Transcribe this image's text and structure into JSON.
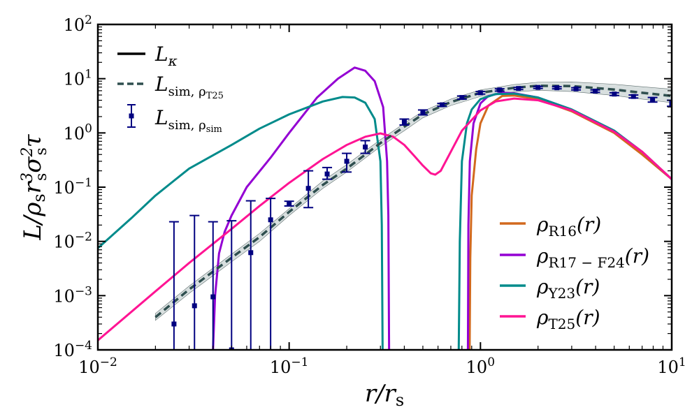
{
  "chart_data": {
    "type": "line",
    "xscale": "log",
    "yscale": "log",
    "xlim": [
      0.01,
      10
    ],
    "ylim": [
      0.0001,
      100
    ],
    "xlabel": "r/r_s",
    "ylabel": "L/ρ_s r_s^3 σ_s^2 τ",
    "x_ticks": [
      {
        "base": "10",
        "exp": "−2"
      },
      {
        "base": "10",
        "exp": "−1"
      },
      {
        "base": "10",
        "exp": "0"
      },
      {
        "base": "10",
        "exp": "1"
      }
    ],
    "y_ticks": [
      {
        "base": "10",
        "exp": "−4"
      },
      {
        "base": "10",
        "exp": "−3"
      },
      {
        "base": "10",
        "exp": "−2"
      },
      {
        "base": "10",
        "exp": "−1"
      },
      {
        "base": "10",
        "exp": "0"
      },
      {
        "base": "10",
        "exp": "1"
      },
      {
        "base": "10",
        "exp": "2"
      }
    ],
    "legend_top_left": [
      {
        "label": "L_κ",
        "style": "solid",
        "color": "#000000"
      },
      {
        "label": "L_sim, ρ_T25",
        "style": "dashed",
        "color": "#2f4f4f"
      },
      {
        "label": "L_sim, ρ_sim",
        "style": "errorbar",
        "color": "#000080"
      }
    ],
    "legend_bottom_right": [
      {
        "label": "ρ_R16(r)",
        "color": "#d2691e"
      },
      {
        "label": "ρ_R17−F24(r)",
        "color": "#9400d3"
      },
      {
        "label": "ρ_Y23(r)",
        "color": "#008b8b"
      },
      {
        "label": "ρ_T25(r)",
        "color": "#ff1493"
      }
    ],
    "series": [
      {
        "name": "ρ_R16(r)",
        "color": "#d2691e",
        "points": [
          [
            0.878,
            0.0001
          ],
          [
            0.885,
            0.005
          ],
          [
            0.9,
            0.07
          ],
          [
            0.95,
            0.5
          ],
          [
            1.0,
            1.5
          ],
          [
            1.1,
            3.2
          ],
          [
            1.3,
            4.8
          ],
          [
            1.5,
            4.9
          ],
          [
            2.0,
            4.2
          ],
          [
            3.0,
            2.5
          ],
          [
            5.0,
            1.0
          ],
          [
            7.0,
            0.4
          ],
          [
            10.0,
            0.14
          ]
        ]
      },
      {
        "name": "ρ_R17−F24(r)",
        "color": "#9400d3",
        "points": [
          [
            0.04,
            0.0001
          ],
          [
            0.041,
            0.001
          ],
          [
            0.043,
            0.006
          ],
          [
            0.046,
            0.015
          ],
          [
            0.05,
            0.03
          ],
          [
            0.06,
            0.1
          ],
          [
            0.08,
            0.35
          ],
          [
            0.1,
            1.0
          ],
          [
            0.14,
            4.5
          ],
          [
            0.18,
            10.0
          ],
          [
            0.22,
            16.0
          ],
          [
            0.25,
            14.0
          ],
          [
            0.28,
            9.0
          ],
          [
            0.31,
            3.0
          ],
          [
            0.325,
            0.3
          ],
          [
            0.33,
            0.03
          ],
          [
            0.333,
            0.0001
          ]
        ],
        "points2": [
          [
            0.86,
            0.0001
          ],
          [
            0.865,
            0.02
          ],
          [
            0.88,
            0.3
          ],
          [
            0.92,
            1.5
          ],
          [
            1.0,
            3.5
          ],
          [
            1.1,
            4.8
          ],
          [
            1.3,
            5.5
          ],
          [
            1.5,
            5.4
          ],
          [
            2.0,
            4.5
          ],
          [
            3.0,
            2.7
          ],
          [
            5.0,
            1.1
          ],
          [
            7.0,
            0.45
          ],
          [
            10.0,
            0.14
          ]
        ]
      },
      {
        "name": "ρ_Y23(r)",
        "color": "#008b8b",
        "points": [
          [
            0.01,
            0.0075
          ],
          [
            0.015,
            0.027
          ],
          [
            0.02,
            0.07
          ],
          [
            0.03,
            0.22
          ],
          [
            0.05,
            0.6
          ],
          [
            0.07,
            1.2
          ],
          [
            0.1,
            2.2
          ],
          [
            0.15,
            3.8
          ],
          [
            0.19,
            4.6
          ],
          [
            0.22,
            4.5
          ],
          [
            0.25,
            3.6
          ],
          [
            0.28,
            1.8
          ],
          [
            0.3,
            0.3
          ],
          [
            0.305,
            0.02
          ],
          [
            0.308,
            0.0001
          ]
        ],
        "points2": [
          [
            0.77,
            0.0001
          ],
          [
            0.78,
            0.01
          ],
          [
            0.8,
            0.3
          ],
          [
            0.85,
            1.5
          ],
          [
            0.9,
            2.7
          ],
          [
            1.0,
            4.2
          ],
          [
            1.2,
            5.2
          ],
          [
            1.5,
            5.3
          ],
          [
            2.0,
            4.5
          ],
          [
            3.0,
            2.7
          ],
          [
            5.0,
            1.1
          ],
          [
            7.0,
            0.45
          ],
          [
            10.0,
            0.14
          ]
        ]
      },
      {
        "name": "ρ_T25(r)",
        "color": "#ff1493",
        "points": [
          [
            0.01,
            0.00015
          ],
          [
            0.02,
            0.0012
          ],
          [
            0.03,
            0.004
          ],
          [
            0.05,
            0.017
          ],
          [
            0.07,
            0.045
          ],
          [
            0.1,
            0.12
          ],
          [
            0.15,
            0.33
          ],
          [
            0.2,
            0.6
          ],
          [
            0.25,
            0.85
          ],
          [
            0.3,
            0.98
          ],
          [
            0.35,
            0.85
          ],
          [
            0.4,
            0.6
          ],
          [
            0.45,
            0.38
          ],
          [
            0.5,
            0.25
          ],
          [
            0.55,
            0.18
          ],
          [
            0.58,
            0.17
          ],
          [
            0.62,
            0.2
          ],
          [
            0.7,
            0.45
          ],
          [
            0.8,
            1.1
          ],
          [
            1.0,
            2.6
          ],
          [
            1.2,
            3.8
          ],
          [
            1.5,
            4.3
          ],
          [
            2.0,
            4.0
          ],
          [
            3.0,
            2.6
          ],
          [
            5.0,
            1.05
          ],
          [
            7.0,
            0.45
          ],
          [
            10.0,
            0.14
          ]
        ]
      },
      {
        "name": "L_sim, ρ_T25",
        "color": "#2f4f4f",
        "dashed": true,
        "points": [
          [
            0.02,
            0.0004
          ],
          [
            0.03,
            0.0013
          ],
          [
            0.05,
            0.005
          ],
          [
            0.07,
            0.012
          ],
          [
            0.1,
            0.035
          ],
          [
            0.15,
            0.11
          ],
          [
            0.2,
            0.22
          ],
          [
            0.3,
            0.65
          ],
          [
            0.4,
            1.3
          ],
          [
            0.5,
            2.2
          ],
          [
            0.7,
            3.7
          ],
          [
            1.0,
            5.5
          ],
          [
            1.5,
            6.8
          ],
          [
            2.0,
            7.4
          ],
          [
            3.0,
            7.3
          ],
          [
            5.0,
            6.3
          ],
          [
            7.0,
            5.5
          ],
          [
            10.0,
            4.8
          ]
        ]
      }
    ],
    "band": {
      "name": "L_sim band",
      "color": "#2f4f4f",
      "lower": [
        [
          0.02,
          0.00035
        ],
        [
          0.03,
          0.0011
        ],
        [
          0.05,
          0.0042
        ],
        [
          0.07,
          0.01
        ],
        [
          0.1,
          0.03
        ],
        [
          0.15,
          0.095
        ],
        [
          0.2,
          0.19
        ],
        [
          0.3,
          0.56
        ],
        [
          0.4,
          1.1
        ],
        [
          0.5,
          1.9
        ],
        [
          0.7,
          3.2
        ],
        [
          1.0,
          4.7
        ],
        [
          1.5,
          5.7
        ],
        [
          2.0,
          6.1
        ],
        [
          3.0,
          5.8
        ],
        [
          5.0,
          4.9
        ],
        [
          7.0,
          4.2
        ],
        [
          10.0,
          3.6
        ]
      ],
      "upper": [
        [
          0.02,
          0.00047
        ],
        [
          0.03,
          0.0015
        ],
        [
          0.05,
          0.0058
        ],
        [
          0.07,
          0.014
        ],
        [
          0.1,
          0.04
        ],
        [
          0.15,
          0.13
        ],
        [
          0.2,
          0.26
        ],
        [
          0.3,
          0.75
        ],
        [
          0.4,
          1.5
        ],
        [
          0.5,
          2.5
        ],
        [
          0.7,
          4.2
        ],
        [
          1.0,
          6.2
        ],
        [
          1.5,
          7.8
        ],
        [
          2.0,
          8.6
        ],
        [
          3.0,
          8.7
        ],
        [
          5.0,
          7.9
        ],
        [
          7.0,
          7.1
        ],
        [
          10.0,
          6.4
        ]
      ]
    },
    "errorbars": {
      "name": "L_sim, ρ_sim",
      "color": "#000080",
      "points": [
        {
          "x": 0.025,
          "y": 0.0003,
          "lo": 0.0001,
          "hi": 0.023
        },
        {
          "x": 0.032,
          "y": 0.00065,
          "lo": 0.0001,
          "hi": 0.03
        },
        {
          "x": 0.04,
          "y": 0.00095,
          "lo": 0.0001,
          "hi": 0.023
        },
        {
          "x": 0.05,
          "y": 0.0001,
          "lo": 0.0001,
          "hi": 0.024
        },
        {
          "x": 0.063,
          "y": 0.0062,
          "lo": 0.0001,
          "hi": 0.056
        },
        {
          "x": 0.08,
          "y": 0.025,
          "lo": 0.0001,
          "hi": 0.062
        },
        {
          "x": 0.1,
          "y": 0.05,
          "lo": 0.045,
          "hi": 0.055
        },
        {
          "x": 0.126,
          "y": 0.095,
          "lo": 0.042,
          "hi": 0.2
        },
        {
          "x": 0.158,
          "y": 0.175,
          "lo": 0.14,
          "hi": 0.23
        },
        {
          "x": 0.2,
          "y": 0.3,
          "lo": 0.19,
          "hi": 0.42
        },
        {
          "x": 0.25,
          "y": 0.55,
          "lo": 0.42,
          "hi": 0.72
        },
        {
          "x": 0.4,
          "y": 1.6,
          "lo": 1.4,
          "hi": 1.8
        },
        {
          "x": 0.5,
          "y": 2.4,
          "lo": 2.15,
          "hi": 2.65
        },
        {
          "x": 0.63,
          "y": 3.3,
          "lo": 3.1,
          "hi": 3.5
        },
        {
          "x": 0.8,
          "y": 4.5,
          "lo": 4.2,
          "hi": 4.8
        },
        {
          "x": 1.0,
          "y": 5.5,
          "lo": 5.2,
          "hi": 5.8
        },
        {
          "x": 1.26,
          "y": 6.2,
          "lo": 5.9,
          "hi": 6.5
        },
        {
          "x": 1.58,
          "y": 6.6,
          "lo": 6.3,
          "hi": 6.9
        },
        {
          "x": 2.0,
          "y": 6.9,
          "lo": 6.6,
          "hi": 7.2
        },
        {
          "x": 2.51,
          "y": 6.8,
          "lo": 6.5,
          "hi": 7.1
        },
        {
          "x": 3.16,
          "y": 6.5,
          "lo": 6.2,
          "hi": 6.8
        },
        {
          "x": 3.98,
          "y": 5.9,
          "lo": 5.6,
          "hi": 6.2
        },
        {
          "x": 5.01,
          "y": 5.2,
          "lo": 4.9,
          "hi": 5.5
        },
        {
          "x": 6.31,
          "y": 4.7,
          "lo": 4.4,
          "hi": 5.0
        },
        {
          "x": 7.94,
          "y": 4.1,
          "lo": 3.7,
          "hi": 4.5
        },
        {
          "x": 10.0,
          "y": 3.5,
          "lo": 3.1,
          "hi": 4.0
        }
      ]
    }
  }
}
